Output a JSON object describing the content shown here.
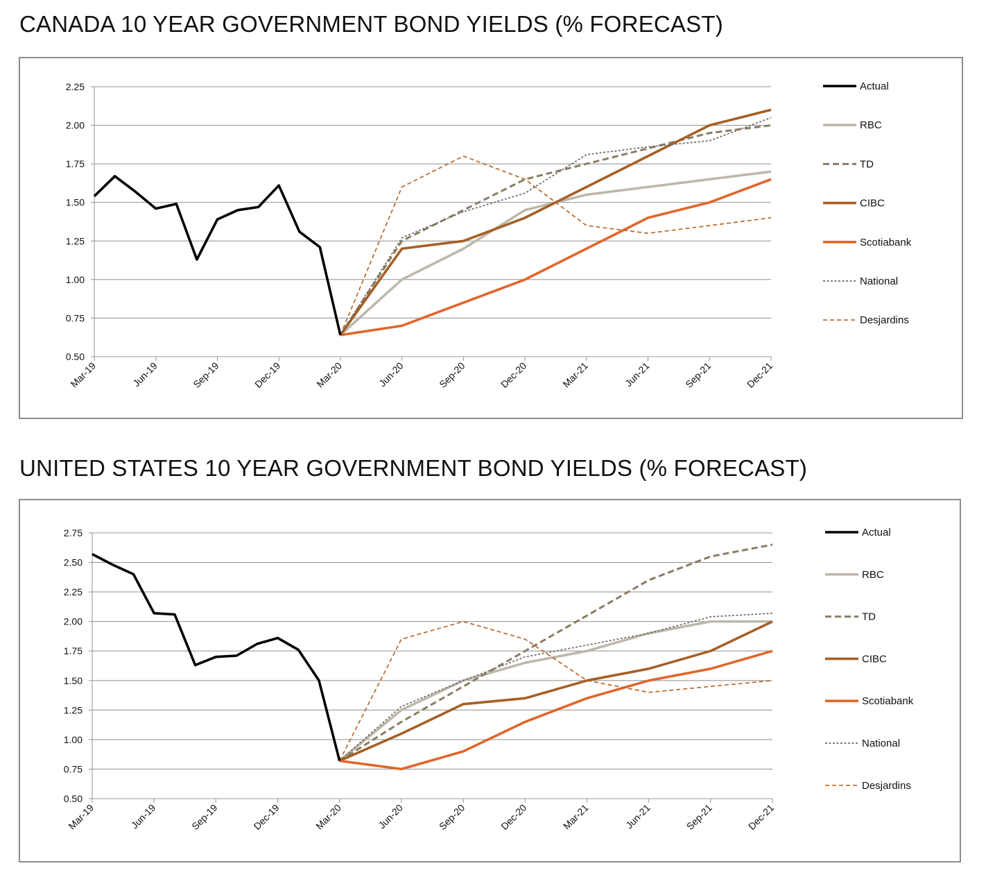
{
  "charts_meta": {
    "frame_color": "#8c8c8c",
    "grid_color": "#9a9a9a"
  },
  "chart_data": [
    {
      "type": "line",
      "title": "CANADA 10 YEAR GOVERNMENT BOND YIELDS (% FORECAST)",
      "xlabel": "",
      "ylabel": "",
      "x_ticks": [
        "Mar-19",
        "Jun-19",
        "Sep-19",
        "Dec-19",
        "Mar-20",
        "Jun-20",
        "Sep-20",
        "Dec-20",
        "Mar-21",
        "Jun-21",
        "Sep-21",
        "Dec-21"
      ],
      "y_ticks": [
        "0.50",
        "0.75",
        "1.00",
        "1.25",
        "1.50",
        "1.75",
        "2.00",
        "2.25"
      ],
      "ylim": [
        0.5,
        2.25
      ],
      "grid": true,
      "legend_placement": "right",
      "series": [
        {
          "name": "Actual",
          "color": "#000000",
          "dash": "solid",
          "width": 3.6,
          "x": [
            0,
            1,
            2,
            3,
            4,
            5,
            6,
            7,
            8,
            9,
            10,
            11,
            12
          ],
          "values": [
            1.54,
            1.67,
            1.57,
            1.46,
            1.49,
            1.13,
            1.39,
            1.45,
            1.47,
            1.61,
            1.31,
            1.21,
            0.64
          ]
        },
        {
          "name": "RBC",
          "color": "#bdb8a9",
          "dash": "solid",
          "width": 3.6,
          "x": [
            12,
            15,
            18,
            21,
            24,
            27,
            30,
            33
          ],
          "values": [
            0.64,
            1.0,
            1.2,
            1.45,
            1.55,
            1.6,
            1.65,
            1.7
          ]
        },
        {
          "name": "TD",
          "color": "#8a7d62",
          "dash": "long",
          "width": 3,
          "x": [
            12,
            15,
            18,
            21,
            24,
            27,
            30,
            33
          ],
          "values": [
            0.64,
            1.25,
            1.45,
            1.65,
            1.75,
            1.85,
            1.95,
            2.0
          ]
        },
        {
          "name": "CIBC",
          "color": "#a65f26",
          "dash": "solid",
          "width": 3.6,
          "x": [
            12,
            15,
            18,
            21,
            24,
            27,
            30,
            33
          ],
          "values": [
            0.64,
            1.2,
            1.25,
            1.4,
            1.6,
            1.8,
            2.0,
            2.1
          ]
        },
        {
          "name": "Scotiabank",
          "color": "#e0662a",
          "dash": "solid",
          "width": 3.6,
          "x": [
            12,
            15,
            18,
            21,
            24,
            27,
            30,
            33
          ],
          "values": [
            0.64,
            0.7,
            0.85,
            1.0,
            1.2,
            1.4,
            1.5,
            1.65
          ]
        },
        {
          "name": "National",
          "color": "#6d6a66",
          "dash": "short",
          "width": 1.7,
          "x": [
            12,
            15,
            18,
            21,
            24,
            27,
            30,
            33
          ],
          "values": [
            0.64,
            1.27,
            1.44,
            1.56,
            1.81,
            1.86,
            1.9,
            2.05
          ]
        },
        {
          "name": "Desjardins",
          "color": "#b8672b",
          "dash": "medium",
          "width": 1.7,
          "x": [
            12,
            15,
            18,
            21,
            24,
            27,
            30,
            33
          ],
          "values": [
            0.64,
            1.6,
            1.8,
            1.65,
            1.35,
            1.3,
            1.35,
            1.4
          ]
        }
      ]
    },
    {
      "type": "line",
      "title": "UNITED STATES 10 YEAR GOVERNMENT BOND YIELDS (% FORECAST)",
      "xlabel": "",
      "ylabel": "",
      "x_ticks": [
        "Mar-19",
        "Jun-19",
        "Sep-19",
        "Dec-19",
        "Mar-20",
        "Jun-20",
        "Sep-20",
        "Dec-20",
        "Mar-21",
        "Jun-21",
        "Sep-21",
        "Dec-21"
      ],
      "y_ticks": [
        "0.50",
        "0.75",
        "1.00",
        "1.25",
        "1.50",
        "1.75",
        "2.00",
        "2.25",
        "2.50",
        "2.75"
      ],
      "ylim": [
        0.5,
        2.75
      ],
      "grid": true,
      "legend_placement": "right",
      "series": [
        {
          "name": "Actual",
          "color": "#000000",
          "dash": "solid",
          "width": 3.6,
          "x": [
            0,
            1,
            2,
            3,
            4,
            5,
            6,
            7,
            8,
            9,
            10,
            11,
            12
          ],
          "values": [
            2.57,
            2.48,
            2.4,
            2.07,
            2.06,
            1.63,
            1.7,
            1.71,
            1.81,
            1.86,
            1.76,
            1.5,
            0.82
          ]
        },
        {
          "name": "RBC",
          "color": "#bdb8a9",
          "dash": "solid",
          "width": 3.6,
          "x": [
            12,
            15,
            18,
            21,
            24,
            27,
            30,
            33
          ],
          "values": [
            0.82,
            1.25,
            1.5,
            1.65,
            1.75,
            1.9,
            2.0,
            2.0
          ]
        },
        {
          "name": "TD",
          "color": "#8a7d62",
          "dash": "long",
          "width": 3,
          "x": [
            12,
            15,
            18,
            21,
            24,
            27,
            30,
            33
          ],
          "values": [
            0.82,
            1.15,
            1.45,
            1.75,
            2.05,
            2.35,
            2.55,
            2.65
          ]
        },
        {
          "name": "CIBC",
          "color": "#a65f26",
          "dash": "solid",
          "width": 3.6,
          "x": [
            12,
            15,
            18,
            21,
            24,
            27,
            30,
            33
          ],
          "values": [
            0.82,
            1.05,
            1.3,
            1.35,
            1.5,
            1.6,
            1.75,
            2.0
          ]
        },
        {
          "name": "Scotiabank",
          "color": "#e0662a",
          "dash": "solid",
          "width": 3.6,
          "x": [
            12,
            15,
            18,
            21,
            24,
            27,
            30,
            33
          ],
          "values": [
            0.82,
            0.75,
            0.9,
            1.15,
            1.35,
            1.5,
            1.6,
            1.75
          ]
        },
        {
          "name": "National",
          "color": "#6d6a66",
          "dash": "short",
          "width": 1.7,
          "x": [
            12,
            15,
            18,
            21,
            24,
            27,
            30,
            33
          ],
          "values": [
            0.82,
            1.28,
            1.5,
            1.7,
            1.8,
            1.9,
            2.04,
            2.07
          ]
        },
        {
          "name": "Desjardins",
          "color": "#b8672b",
          "dash": "medium",
          "width": 1.7,
          "x": [
            12,
            15,
            18,
            21,
            24,
            27,
            30,
            33
          ],
          "values": [
            0.82,
            1.85,
            2.0,
            1.85,
            1.5,
            1.4,
            1.45,
            1.5
          ]
        }
      ]
    }
  ]
}
